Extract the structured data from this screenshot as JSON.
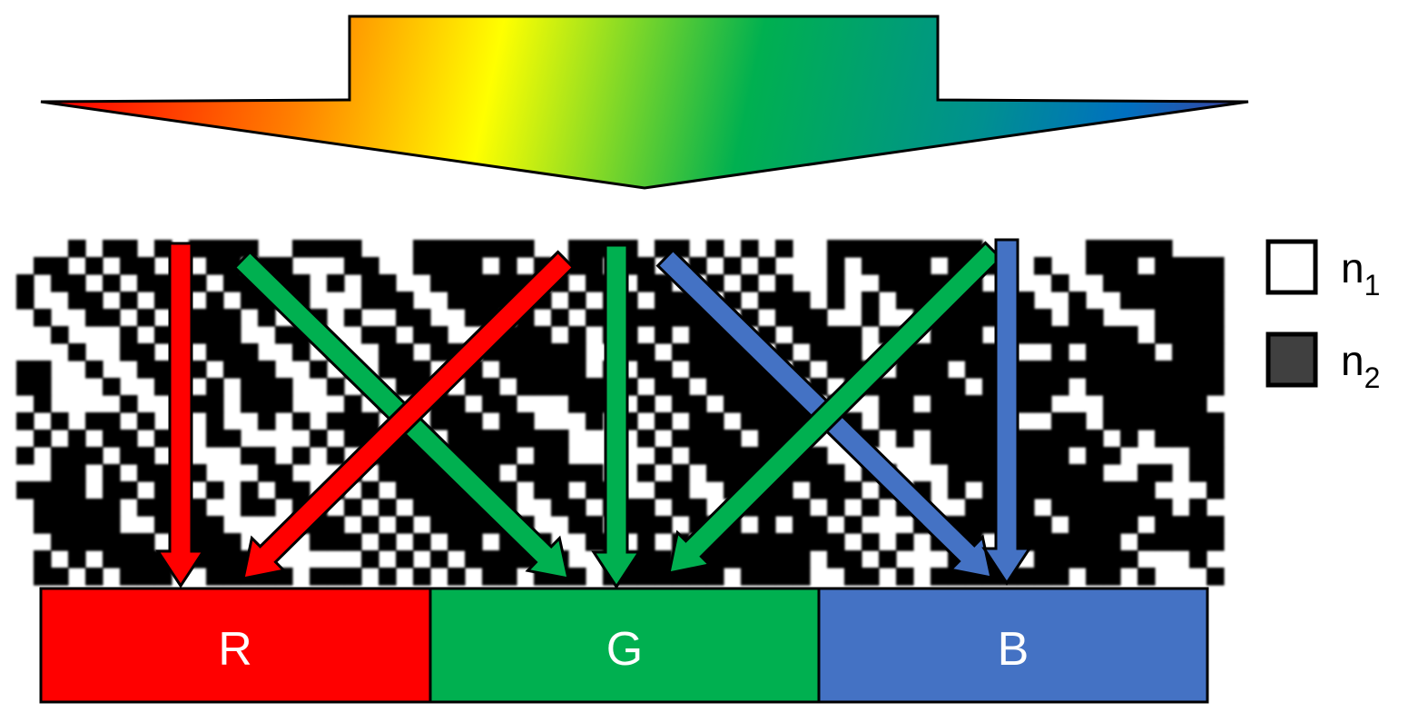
{
  "colors": {
    "red": "#ff0000",
    "green": "#00b050",
    "blue": "#4472c4",
    "outline": "#000000",
    "n1": "#ffffff",
    "n2": "#404040"
  },
  "bands": [
    {
      "label": "R",
      "color": "#ff0000"
    },
    {
      "label": "G",
      "color": "#00b050"
    },
    {
      "label": "B",
      "color": "#4472c4"
    }
  ],
  "legend": [
    {
      "symbol": "n",
      "sub": "1",
      "color": "#ffffff"
    },
    {
      "symbol": "n",
      "sub": "2",
      "color": "#404040"
    }
  ]
}
